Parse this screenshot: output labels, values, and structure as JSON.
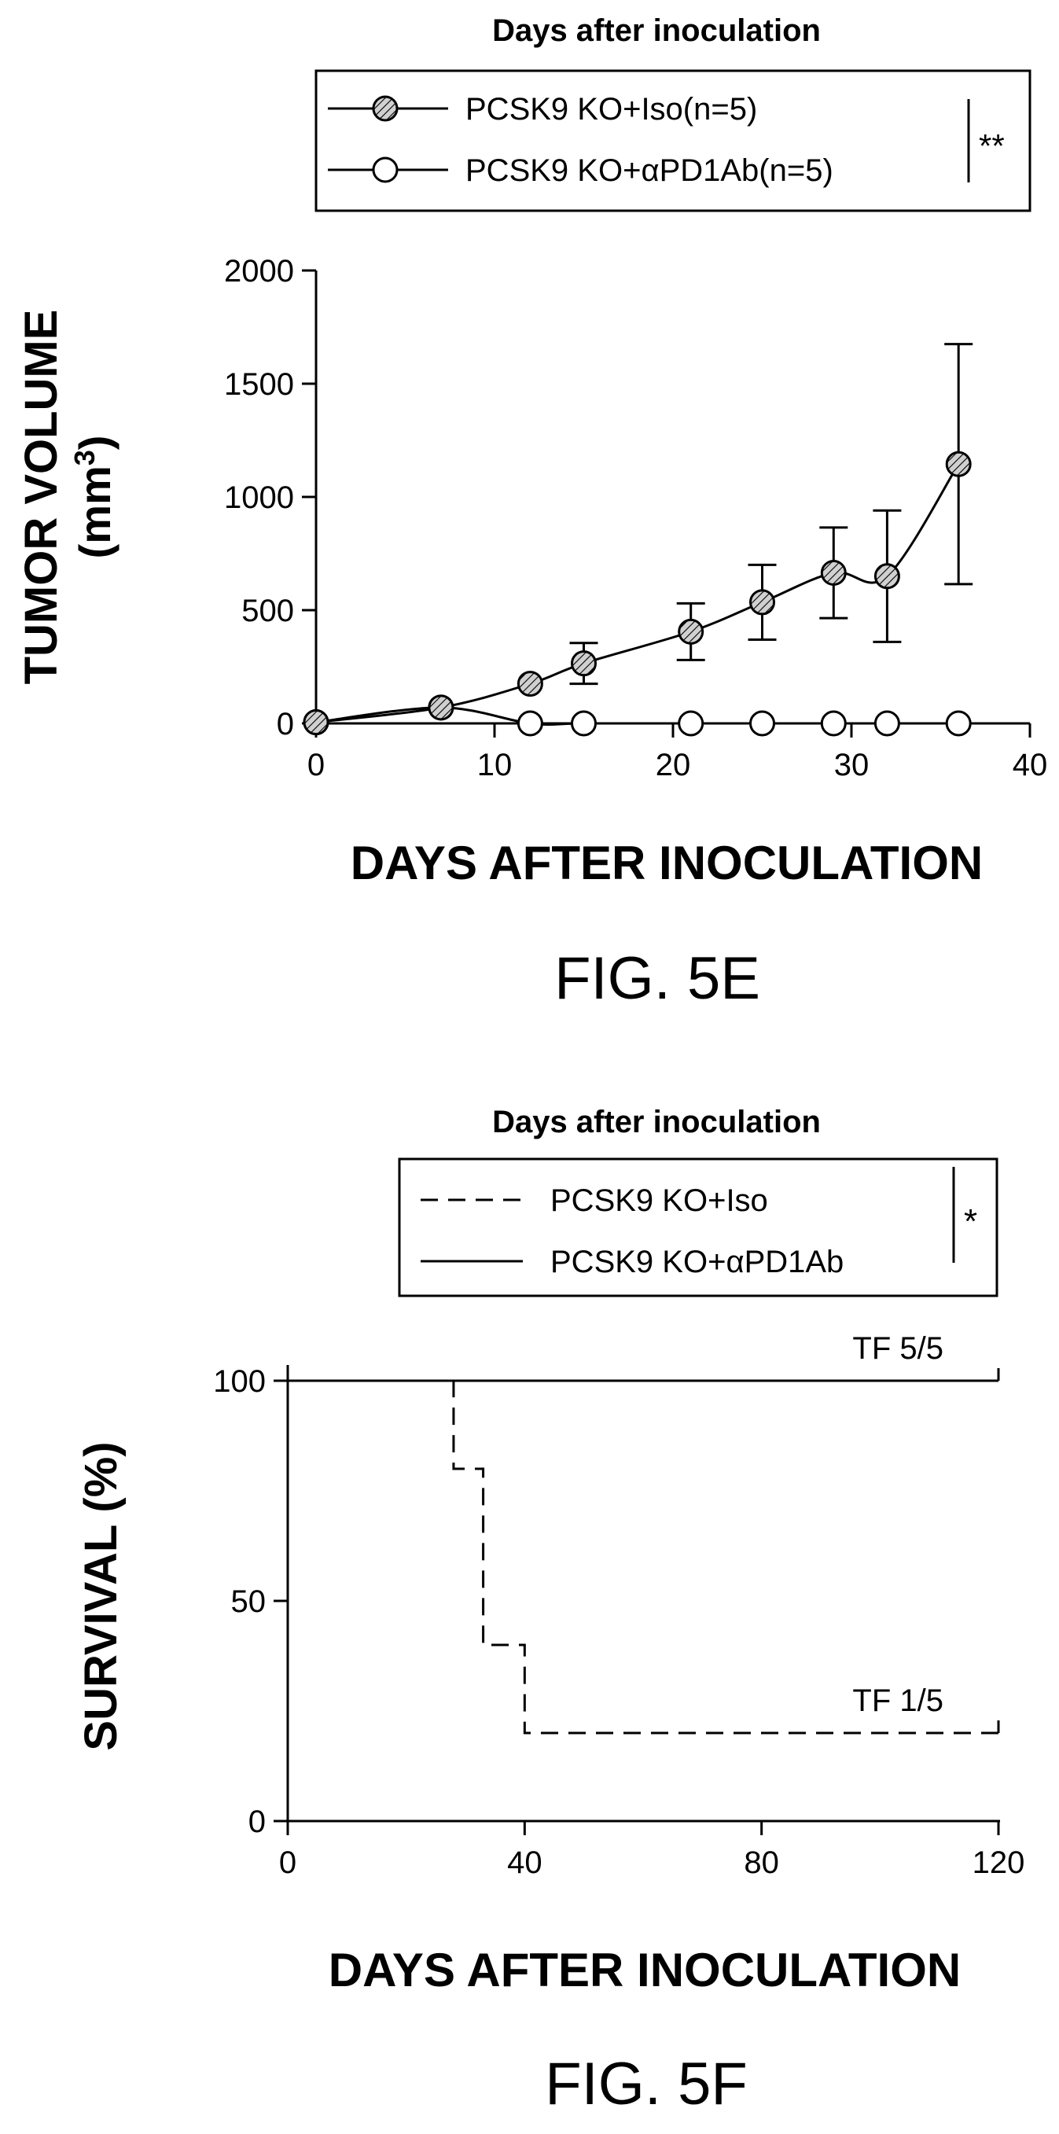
{
  "chart_data": [
    {
      "type": "line",
      "figure_label": "FIG. 5E",
      "title": "Days after inoculation",
      "xlabel": "DAYS AFTER INOCULATION",
      "ylabel": "TUMOR VOLUME",
      "ylabel_unit_prefix": "(mm",
      "ylabel_unit_sup": "3",
      "ylabel_unit_suffix": ")",
      "xlim": [
        0,
        40
      ],
      "ylim": [
        0,
        2000
      ],
      "x_ticks": [
        0,
        10,
        20,
        30,
        40
      ],
      "y_ticks": [
        0,
        500,
        1000,
        1500,
        2000
      ],
      "grid": false,
      "legend_position": "top",
      "significance": "**",
      "series": [
        {
          "name": "PCSK9 KO+Iso(n=5)",
          "marker": "hatched-circle",
          "points": [
            {
              "x": 0,
              "y": 5,
              "err": 0
            },
            {
              "x": 7,
              "y": 70,
              "err": 0
            },
            {
              "x": 12,
              "y": 175,
              "err": 0
            },
            {
              "x": 15,
              "y": 265,
              "err": 90
            },
            {
              "x": 21,
              "y": 405,
              "err": 125
            },
            {
              "x": 25,
              "y": 535,
              "err": 165
            },
            {
              "x": 29,
              "y": 665,
              "err": 200
            },
            {
              "x": 32,
              "y": 650,
              "err": 290
            },
            {
              "x": 36,
              "y": 1145,
              "err": 530
            }
          ]
        },
        {
          "name": "PCSK9 KO+αPD1Ab(n=5)",
          "marker": "open-circle",
          "points": [
            {
              "x": 0,
              "y": 5,
              "err": 0
            },
            {
              "x": 7,
              "y": 70,
              "err": 0
            },
            {
              "x": 12,
              "y": 0,
              "err": 0
            },
            {
              "x": 15,
              "y": 0,
              "err": 0
            },
            {
              "x": 21,
              "y": 0,
              "err": 0
            },
            {
              "x": 25,
              "y": 0,
              "err": 0
            },
            {
              "x": 29,
              "y": 0,
              "err": 0
            },
            {
              "x": 32,
              "y": 0,
              "err": 0
            },
            {
              "x": 36,
              "y": 0,
              "err": 0
            }
          ]
        }
      ]
    },
    {
      "type": "line",
      "subtype": "kaplan-meier",
      "figure_label": "FIG. 5F",
      "title": "Days after inoculation",
      "xlabel": "DAYS AFTER INOCULATION",
      "ylabel": "SURVIVAL (%)",
      "xlim": [
        0,
        120
      ],
      "ylim": [
        0,
        100
      ],
      "x_ticks": [
        0,
        40,
        80,
        120
      ],
      "y_ticks": [
        0,
        50,
        100
      ],
      "grid": false,
      "legend_position": "top",
      "significance": "*",
      "series": [
        {
          "name": "PCSK9 KO+Iso",
          "line_style": "dashed",
          "steps": [
            [
              0,
              100
            ],
            [
              28,
              100
            ],
            [
              28,
              80
            ],
            [
              33,
              80
            ],
            [
              33,
              40
            ],
            [
              40,
              40
            ],
            [
              40,
              20
            ],
            [
              120,
              20
            ]
          ],
          "annotation": "TF 1/5"
        },
        {
          "name": "PCSK9 KO+αPD1Ab",
          "line_style": "solid",
          "steps": [
            [
              0,
              100
            ],
            [
              120,
              100
            ]
          ],
          "annotation": "TF 5/5"
        }
      ]
    }
  ]
}
